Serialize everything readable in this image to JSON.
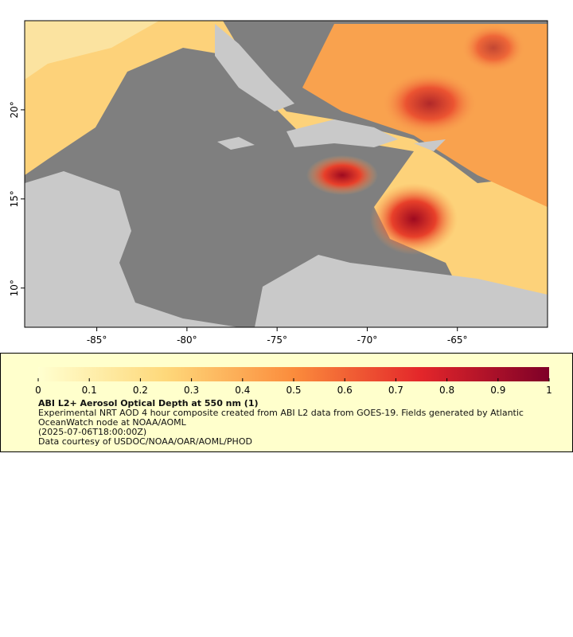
{
  "map": {
    "xlim": [
      -89,
      -60
    ],
    "ylim": [
      7.8,
      25
    ],
    "xticks": [
      {
        "value": -85,
        "label": "-85°"
      },
      {
        "value": -80,
        "label": "-80°"
      },
      {
        "value": -75,
        "label": "-75°"
      },
      {
        "value": -70,
        "label": "-70°"
      },
      {
        "value": -65,
        "label": "-65°"
      }
    ],
    "yticks": [
      {
        "value": 10,
        "label": "10°"
      },
      {
        "value": 15,
        "label": "15°"
      },
      {
        "value": 20,
        "label": "20°"
      }
    ]
  },
  "colorbar": {
    "lim": [
      0,
      1
    ],
    "ticks": [
      0,
      0.1,
      0.2,
      0.3,
      0.4,
      0.5,
      0.6,
      0.7,
      0.8,
      0.9,
      1
    ]
  },
  "legend": {
    "title": "ABI L2+ Aerosol Optical Depth at 550 nm (1)",
    "description": "Experimental NRT AOD 4 hour composite created from ABI L2 data from GOES-19. Fields generated by Atlantic OceanWatch node at NOAA/AOML",
    "date": "(2025-07-06T18:00:00Z)",
    "credit": "Data courtesy of USDOC/NOAA/OAR/AOML/PHOD"
  }
}
